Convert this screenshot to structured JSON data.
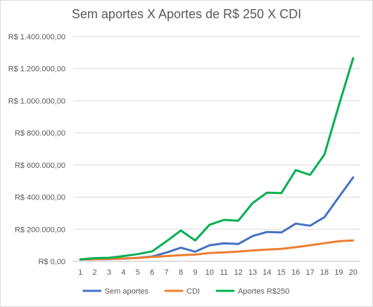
{
  "chart_data": {
    "type": "line",
    "title": "Sem aportes X Aportes de R$ 250 X CDI",
    "xlabel": "",
    "ylabel": "",
    "categories": [
      "1",
      "2",
      "3",
      "4",
      "5",
      "6",
      "7",
      "8",
      "9",
      "10",
      "11",
      "12",
      "13",
      "14",
      "15",
      "16",
      "17",
      "18",
      "19",
      "20"
    ],
    "y_ticks": [
      "R$ 0,00",
      "R$ 200.000,00",
      "R$ 400.000,00",
      "R$ 600.000,00",
      "R$ 800.000,00",
      "R$ 1.000.000,00",
      "R$ 1.200.000,00",
      "R$ 1.400.000,00"
    ],
    "ylim": [
      0,
      1400000
    ],
    "grid": true,
    "legend_position": "bottom",
    "series": [
      {
        "name": "Sem aportes",
        "color": "#4472c4",
        "values": [
          12000,
          13000,
          14000,
          17000,
          22000,
          30000,
          55000,
          85000,
          60000,
          100000,
          112000,
          108000,
          158000,
          183000,
          180000,
          235000,
          222000,
          275000,
          400000,
          523000
        ]
      },
      {
        "name": "CDI",
        "color": "#ed7d31",
        "values": [
          12000,
          13000,
          15000,
          18000,
          21000,
          27000,
          33000,
          38000,
          42000,
          52000,
          56000,
          61000,
          68000,
          73000,
          78000,
          88000,
          100000,
          113000,
          125000,
          130000
        ]
      },
      {
        "name": "Aportes R$250",
        "color": "#00b050",
        "values": [
          12000,
          20000,
          22000,
          33000,
          45000,
          62000,
          125000,
          192000,
          130000,
          228000,
          258000,
          253000,
          363000,
          428000,
          425000,
          568000,
          538000,
          665000,
          970000,
          1265000
        ]
      }
    ]
  }
}
